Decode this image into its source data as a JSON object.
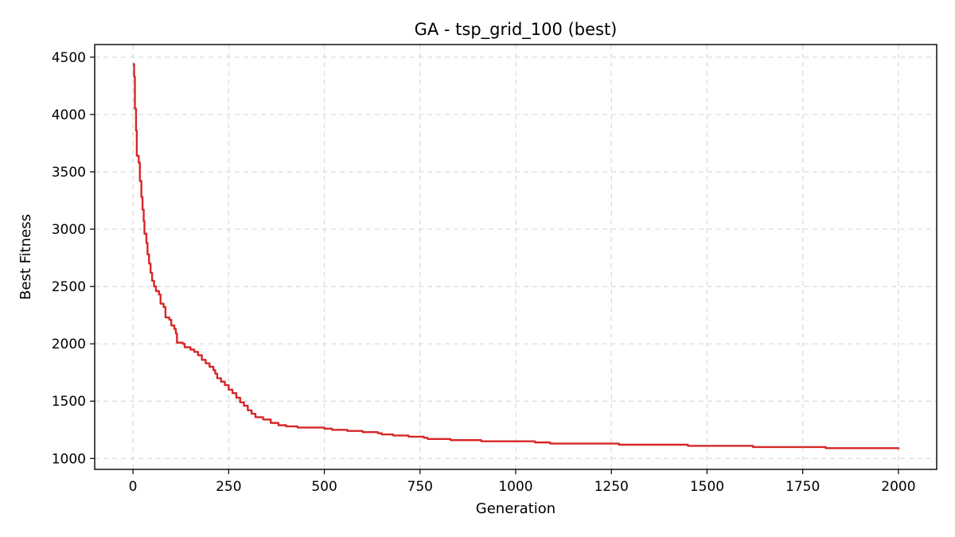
{
  "chart_data": {
    "type": "line",
    "title": "GA - tsp_grid_100 (best)",
    "xlabel": "Generation",
    "ylabel": "Best Fitness",
    "xlim": [
      -100,
      2100
    ],
    "ylim": [
      905,
      4610
    ],
    "xticks": [
      0,
      250,
      500,
      750,
      1000,
      1250,
      1500,
      1750,
      2000
    ],
    "yticks": [
      1000,
      1500,
      2000,
      2500,
      3000,
      3500,
      4000,
      4500
    ],
    "grid": true,
    "legend": "none",
    "series": [
      {
        "color": "#d62728",
        "step": true,
        "points": [
          [
            0,
            4440
          ],
          [
            3,
            4330
          ],
          [
            5,
            4050
          ],
          [
            8,
            3860
          ],
          [
            10,
            3640
          ],
          [
            15,
            3580
          ],
          [
            18,
            3420
          ],
          [
            22,
            3280
          ],
          [
            25,
            3170
          ],
          [
            28,
            3070
          ],
          [
            30,
            2960
          ],
          [
            35,
            2880
          ],
          [
            38,
            2780
          ],
          [
            42,
            2700
          ],
          [
            46,
            2620
          ],
          [
            50,
            2550
          ],
          [
            55,
            2500
          ],
          [
            60,
            2460
          ],
          [
            68,
            2430
          ],
          [
            72,
            2350
          ],
          [
            80,
            2320
          ],
          [
            85,
            2230
          ],
          [
            95,
            2210
          ],
          [
            100,
            2160
          ],
          [
            108,
            2130
          ],
          [
            112,
            2090
          ],
          [
            115,
            2010
          ],
          [
            130,
            2000
          ],
          [
            135,
            1970
          ],
          [
            150,
            1950
          ],
          [
            160,
            1930
          ],
          [
            170,
            1900
          ],
          [
            180,
            1860
          ],
          [
            190,
            1830
          ],
          [
            200,
            1800
          ],
          [
            210,
            1770
          ],
          [
            215,
            1740
          ],
          [
            220,
            1700
          ],
          [
            230,
            1670
          ],
          [
            240,
            1640
          ],
          [
            250,
            1600
          ],
          [
            260,
            1570
          ],
          [
            270,
            1530
          ],
          [
            280,
            1490
          ],
          [
            290,
            1460
          ],
          [
            300,
            1420
          ],
          [
            310,
            1390
          ],
          [
            320,
            1360
          ],
          [
            340,
            1340
          ],
          [
            360,
            1310
          ],
          [
            380,
            1290
          ],
          [
            400,
            1280
          ],
          [
            430,
            1270
          ],
          [
            500,
            1260
          ],
          [
            520,
            1250
          ],
          [
            560,
            1240
          ],
          [
            600,
            1230
          ],
          [
            640,
            1220
          ],
          [
            650,
            1210
          ],
          [
            680,
            1200
          ],
          [
            720,
            1190
          ],
          [
            760,
            1180
          ],
          [
            770,
            1170
          ],
          [
            830,
            1160
          ],
          [
            910,
            1150
          ],
          [
            1050,
            1140
          ],
          [
            1090,
            1130
          ],
          [
            1270,
            1120
          ],
          [
            1450,
            1110
          ],
          [
            1620,
            1100
          ],
          [
            1810,
            1090
          ],
          [
            1990,
            1090
          ],
          [
            2000,
            1080
          ]
        ]
      }
    ]
  }
}
